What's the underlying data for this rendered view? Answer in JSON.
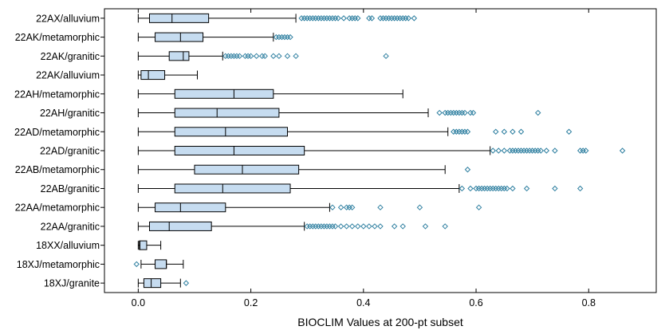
{
  "chart_data": {
    "type": "boxplot",
    "orientation": "horizontal",
    "title": "",
    "xlabel": "BIOCLIM Values at 200-pt subset",
    "ylabel": "",
    "xlim": [
      -0.06,
      0.92
    ],
    "xticks": [
      0.0,
      0.2,
      0.4,
      0.6,
      0.8
    ],
    "xtick_labels": [
      "0.0",
      "0.2",
      "0.4",
      "0.6",
      "0.8"
    ],
    "grid": false,
    "legend": "none",
    "colors": {
      "box_fill": "#c6dcf0",
      "box_stroke": "#000000",
      "outlier": "#2e7fa0"
    },
    "categories": [
      "22AX/alluvium",
      "22AK/metamorphic",
      "22AK/granitic",
      "22AK/alluvium",
      "22AH/metamorphic",
      "22AH/granitic",
      "22AD/metamorphic",
      "22AD/granitic",
      "22AB/metamorphic",
      "22AB/granitic",
      "22AA/metamorphic",
      "22AA/granitic",
      "18XX/alluvium",
      "18XJ/metamorphic",
      "18XJ/granite"
    ],
    "boxes": [
      {
        "category": "22AX/alluvium",
        "whisker_low": 0.0,
        "q1": 0.02,
        "median": 0.06,
        "q3": 0.125,
        "whisker_high": 0.28,
        "outliers": [
          0.29,
          0.295,
          0.3,
          0.305,
          0.31,
          0.315,
          0.32,
          0.325,
          0.33,
          0.335,
          0.34,
          0.345,
          0.35,
          0.355,
          0.365,
          0.375,
          0.38,
          0.385,
          0.39,
          0.41,
          0.415,
          0.43,
          0.435,
          0.44,
          0.445,
          0.45,
          0.455,
          0.46,
          0.465,
          0.47,
          0.475,
          0.48,
          0.49
        ]
      },
      {
        "category": "22AK/metamorphic",
        "whisker_low": 0.0,
        "q1": 0.03,
        "median": 0.075,
        "q3": 0.115,
        "whisker_high": 0.24,
        "outliers": [
          0.245,
          0.25,
          0.255,
          0.26,
          0.265,
          0.27
        ]
      },
      {
        "category": "22AK/granitic",
        "whisker_low": 0.0,
        "q1": 0.055,
        "median": 0.08,
        "q3": 0.09,
        "whisker_high": 0.15,
        "outliers": [
          0.155,
          0.16,
          0.165,
          0.17,
          0.175,
          0.18,
          0.19,
          0.195,
          0.2,
          0.21,
          0.22,
          0.225,
          0.24,
          0.25,
          0.265,
          0.28,
          0.44
        ]
      },
      {
        "category": "22AK/alluvium",
        "whisker_low": 0.0,
        "q1": 0.005,
        "median": 0.018,
        "q3": 0.047,
        "whisker_high": 0.105,
        "outliers": []
      },
      {
        "category": "22AH/metamorphic",
        "whisker_low": 0.0,
        "q1": 0.065,
        "median": 0.17,
        "q3": 0.24,
        "whisker_high": 0.47,
        "outliers": []
      },
      {
        "category": "22AH/granitic",
        "whisker_low": 0.0,
        "q1": 0.065,
        "median": 0.14,
        "q3": 0.25,
        "whisker_high": 0.515,
        "outliers": [
          0.535,
          0.545,
          0.55,
          0.555,
          0.56,
          0.565,
          0.57,
          0.575,
          0.58,
          0.59,
          0.595,
          0.71
        ]
      },
      {
        "category": "22AD/metamorphic",
        "whisker_low": 0.0,
        "q1": 0.065,
        "median": 0.155,
        "q3": 0.265,
        "whisker_high": 0.55,
        "outliers": [
          0.56,
          0.565,
          0.57,
          0.575,
          0.58,
          0.585,
          0.635,
          0.65,
          0.665,
          0.68,
          0.765
        ]
      },
      {
        "category": "22AD/granitic",
        "whisker_low": 0.0,
        "q1": 0.065,
        "median": 0.17,
        "q3": 0.295,
        "whisker_high": 0.625,
        "outliers": [
          0.63,
          0.64,
          0.65,
          0.66,
          0.665,
          0.67,
          0.675,
          0.68,
          0.685,
          0.69,
          0.695,
          0.7,
          0.705,
          0.71,
          0.715,
          0.725,
          0.74,
          0.785,
          0.79,
          0.795,
          0.86
        ]
      },
      {
        "category": "22AB/metamorphic",
        "whisker_low": 0.0,
        "q1": 0.1,
        "median": 0.185,
        "q3": 0.285,
        "whisker_high": 0.545,
        "outliers": [
          0.585
        ]
      },
      {
        "category": "22AB/granitic",
        "whisker_low": 0.0,
        "q1": 0.065,
        "median": 0.15,
        "q3": 0.27,
        "whisker_high": 0.57,
        "outliers": [
          0.575,
          0.59,
          0.6,
          0.605,
          0.61,
          0.615,
          0.62,
          0.625,
          0.63,
          0.635,
          0.64,
          0.645,
          0.65,
          0.655,
          0.665,
          0.69,
          0.74,
          0.785
        ]
      },
      {
        "category": "22AA/metamorphic",
        "whisker_low": 0.0,
        "q1": 0.03,
        "median": 0.075,
        "q3": 0.155,
        "whisker_high": 0.34,
        "outliers": [
          0.345,
          0.36,
          0.37,
          0.375,
          0.38,
          0.43,
          0.5,
          0.605
        ]
      },
      {
        "category": "22AA/granitic",
        "whisker_low": 0.0,
        "q1": 0.02,
        "median": 0.055,
        "q3": 0.13,
        "whisker_high": 0.295,
        "outliers": [
          0.3,
          0.305,
          0.31,
          0.315,
          0.32,
          0.325,
          0.33,
          0.335,
          0.34,
          0.345,
          0.35,
          0.36,
          0.37,
          0.38,
          0.39,
          0.4,
          0.41,
          0.42,
          0.43,
          0.455,
          0.47,
          0.51,
          0.545
        ]
      },
      {
        "category": "18XX/alluvium",
        "whisker_low": 0.0,
        "q1": 0.002,
        "median": 0.003,
        "q3": 0.015,
        "whisker_high": 0.04,
        "outliers": []
      },
      {
        "category": "18XJ/metamorphic",
        "whisker_low": 0.005,
        "q1": 0.03,
        "median": 0.05,
        "q3": 0.05,
        "whisker_high": 0.08,
        "outliers": [
          -0.003
        ]
      },
      {
        "category": "18XJ/granite",
        "whisker_low": 0.0,
        "q1": 0.01,
        "median": 0.023,
        "q3": 0.04,
        "whisker_high": 0.075,
        "outliers": [
          0.085
        ]
      }
    ]
  }
}
